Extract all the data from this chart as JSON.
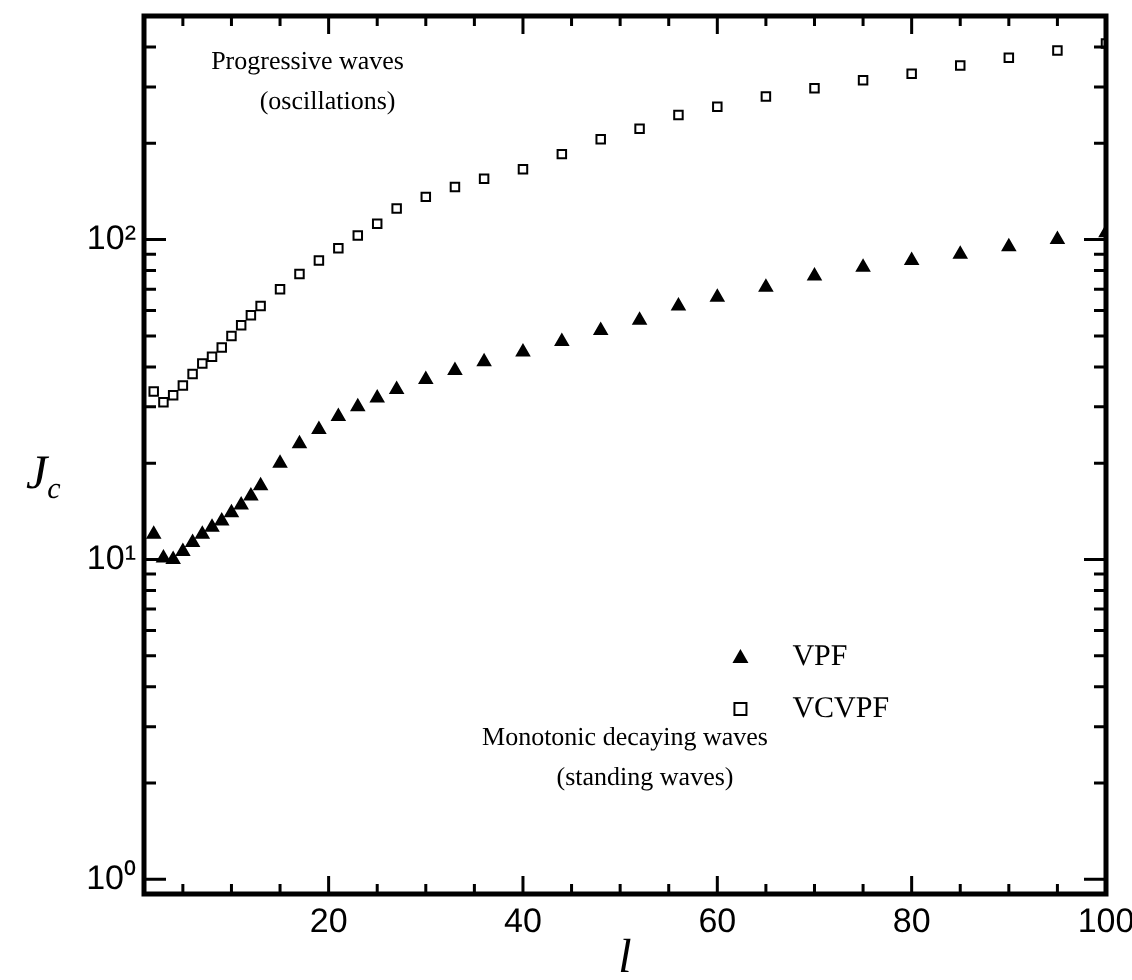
{
  "chart_data": {
    "type": "scatter",
    "xlabel": "l",
    "ylabel": "J$_{c}$",
    "log": "y",
    "grid": false,
    "legend": "bottom right",
    "annotations": [
      "Progressive waves\n(oscillations)",
      "Monotonic decaying waves\n(standing waves)"
    ],
    "xlim": [
      1,
      100
    ],
    "xticks": [
      {
        "value": 5,
        "label": null
      },
      {
        "value": 10,
        "label": null
      },
      {
        "value": 15,
        "label": null
      },
      20,
      {
        "value": 25,
        "label": null
      },
      {
        "value": 30,
        "label": null
      },
      {
        "value": 35,
        "label": null
      },
      40,
      {
        "value": 45,
        "label": null
      },
      {
        "value": 50,
        "label": null
      },
      {
        "value": 55,
        "label": null
      },
      60,
      {
        "value": 65,
        "label": null
      },
      {
        "value": 70,
        "label": null
      },
      {
        "value": 75,
        "label": null
      },
      80,
      {
        "value": 85,
        "label": null
      },
      {
        "value": 90,
        "label": null
      },
      {
        "value": 95,
        "label": null
      },
      100
    ],
    "ylim": [
      0.9,
      500
    ],
    "yticks": [
      {
        "value": 1,
        "label": "10⁰"
      },
      {
        "value": 2,
        "label": null
      },
      {
        "value": 3,
        "label": null
      },
      {
        "value": 4,
        "label": null
      },
      {
        "value": 5,
        "label": null
      },
      {
        "value": 6,
        "label": null
      },
      {
        "value": 7,
        "label": null
      },
      {
        "value": 8,
        "label": null
      },
      {
        "value": 9,
        "label": null
      },
      {
        "value": 10,
        "label": "10¹"
      },
      {
        "value": 20,
        "label": null
      },
      {
        "value": 30,
        "label": null
      },
      {
        "value": 40,
        "label": null
      },
      {
        "value": 50,
        "label": null
      },
      {
        "value": 60,
        "label": null
      },
      {
        "value": 70,
        "label": null
      },
      {
        "value": 80,
        "label": null
      },
      {
        "value": 90,
        "label": null
      },
      {
        "value": 100,
        "label": "10²"
      },
      {
        "value": 200,
        "label": null
      },
      {
        "value": 300,
        "label": null
      },
      {
        "value": 400,
        "label": null
      }
    ],
    "x": [
      2,
      3,
      4,
      5,
      6,
      7,
      8,
      9,
      10,
      11,
      12,
      13,
      15,
      17,
      19,
      21,
      23,
      25,
      27,
      30,
      33,
      36,
      40,
      44,
      48,
      52,
      56,
      60,
      65,
      70,
      75,
      80,
      85,
      90,
      95,
      100
    ],
    "series": [
      {
        "name": "VPF",
        "color": "#000000",
        "marker": "triangle",
        "values": [
          12,
          10.1,
          10,
          10.6,
          11.3,
          12,
          12.6,
          13.2,
          14,
          14.8,
          15.8,
          17,
          20,
          23,
          25.5,
          28,
          30,
          32,
          34,
          36.5,
          39,
          41.5,
          44.5,
          48,
          52,
          56,
          62,
          66,
          71,
          77,
          82,
          86,
          90,
          95,
          100,
          105
        ]
      },
      {
        "name": "VCVPF",
        "color": "#000000",
        "marker": "square",
        "values": [
          33.5,
          31,
          32.6,
          35,
          38,
          41,
          43,
          46,
          50,
          54,
          58,
          62,
          70,
          78,
          86,
          94,
          103,
          112,
          125,
          136,
          146,
          155,
          166,
          185,
          206,
          222,
          245,
          260,
          280,
          297,
          315,
          330,
          350,
          370,
          390,
          410
        ]
      }
    ]
  }
}
